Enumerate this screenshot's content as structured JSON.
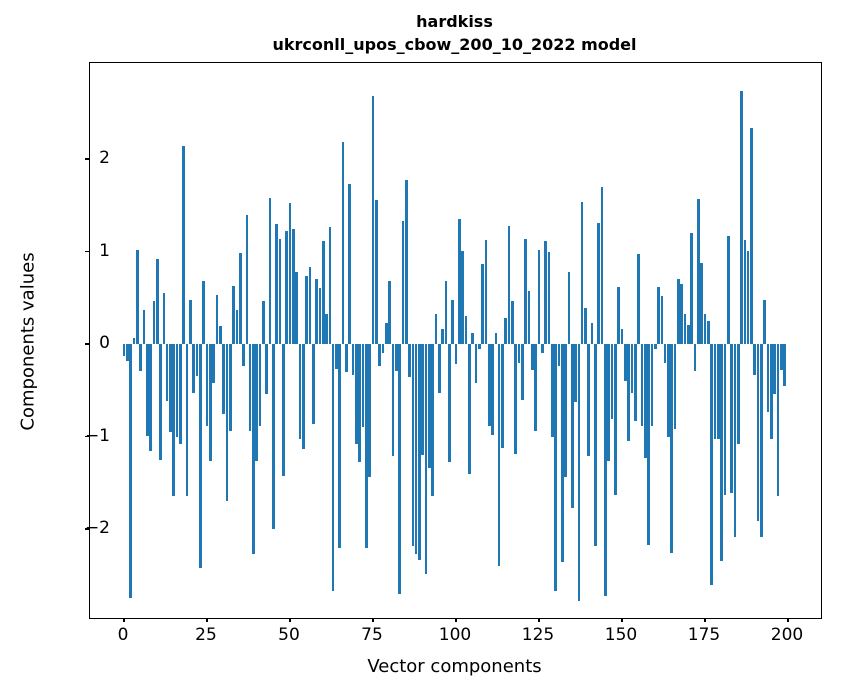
{
  "title": {
    "line1": "hardkiss",
    "line2": "ukrconll_upos_cbow_200_10_2022 model"
  },
  "axes": {
    "xlabel": "Vector components",
    "ylabel": "Components values",
    "x_tick_labels": [
      "0",
      "25",
      "50",
      "75",
      "100",
      "125",
      "150",
      "175",
      "200"
    ],
    "y_tick_labels": [
      "2",
      "1",
      "0",
      "−1",
      "−2"
    ]
  },
  "chart_data": {
    "type": "bar",
    "title": "hardkiss\nukrconll_upos_cbow_200_10_2022 model",
    "xlabel": "Vector components",
    "ylabel": "Components values",
    "legend": "none",
    "grid": false,
    "bar_color": "#1f77b4",
    "xlim": [
      -10.2,
      210.0
    ],
    "ylim": [
      -2.96,
      3.04
    ],
    "x_ticks": [
      0,
      25,
      50,
      75,
      100,
      125,
      150,
      175,
      200
    ],
    "y_ticks": [
      2,
      1,
      0,
      -1,
      -2
    ],
    "x": "component index 0..199",
    "values": [
      -0.13,
      -0.18,
      -2.75,
      0.07,
      1.02,
      -0.29,
      0.37,
      -0.99,
      -1.16,
      0.46,
      0.92,
      -1.25,
      0.55,
      -0.62,
      -0.95,
      -1.64,
      -1.0,
      -1.08,
      2.14,
      -1.64,
      0.48,
      -0.53,
      -0.35,
      -2.42,
      0.68,
      -0.89,
      -1.26,
      -0.42,
      0.53,
      0.19,
      -0.76,
      -1.7,
      -0.94,
      0.63,
      0.37,
      0.98,
      -0.24,
      1.4,
      -0.94,
      -2.27,
      -1.26,
      -0.89,
      0.46,
      -0.54,
      1.58,
      -2.0,
      1.3,
      1.13,
      -1.43,
      1.22,
      1.52,
      1.24,
      0.78,
      -1.03,
      -1.14,
      0.74,
      0.83,
      -0.87,
      0.7,
      0.61,
      1.11,
      0.32,
      1.26,
      -2.67,
      -0.27,
      -2.2,
      2.18,
      -0.3,
      1.73,
      -0.33,
      -1.08,
      -1.28,
      -0.9,
      -2.2,
      -1.44,
      2.68,
      1.56,
      -0.24,
      -0.1,
      0.23,
      0.68,
      -1.21,
      -0.29,
      -2.7,
      1.33,
      1.77,
      -0.36,
      -2.18,
      -2.27,
      -2.33,
      -1.2,
      -2.49,
      -1.34,
      -1.64,
      0.32,
      -0.53,
      0.16,
      0.68,
      -1.28,
      0.48,
      -0.22,
      1.35,
      1.01,
      0.3,
      -1.41,
      0.12,
      -0.42,
      -0.05,
      0.87,
      1.12,
      -0.89,
      -0.98,
      0.12,
      -2.4,
      -1.12,
      0.28,
      1.28,
      0.46,
      -1.19,
      -0.21,
      -0.6,
      1.13,
      0.57,
      -0.28,
      -0.94,
      1.02,
      -0.1,
      1.11,
      1.0,
      -1.0,
      -2.67,
      -0.24,
      -2.36,
      -1.44,
      0.78,
      -1.77,
      -0.63,
      -2.78,
      1.53,
      0.39,
      -1.21,
      0.23,
      -2.18,
      1.31,
      1.7,
      -2.72,
      -1.26,
      -0.81,
      -1.63,
      0.62,
      0.16,
      -0.4,
      -1.05,
      -0.53,
      -0.83,
      0.97,
      -0.89,
      -1.23,
      -2.17,
      -0.89,
      -0.05,
      0.62,
      0.52,
      -0.2,
      -1.01,
      -2.26,
      -0.92,
      0.7,
      0.65,
      0.32,
      0.21,
      1.2,
      -0.29,
      1.57,
      0.88,
      0.32,
      0.25,
      -2.6,
      -1.03,
      -1.03,
      -2.35,
      -1.63,
      1.17,
      -1.61,
      -2.09,
      -1.08,
      2.74,
      1.12,
      1.01,
      2.34,
      -0.33,
      -1.91,
      -2.09,
      0.48,
      -0.74,
      -1.03,
      -0.54,
      -1.64,
      -0.28,
      -0.45
    ]
  }
}
